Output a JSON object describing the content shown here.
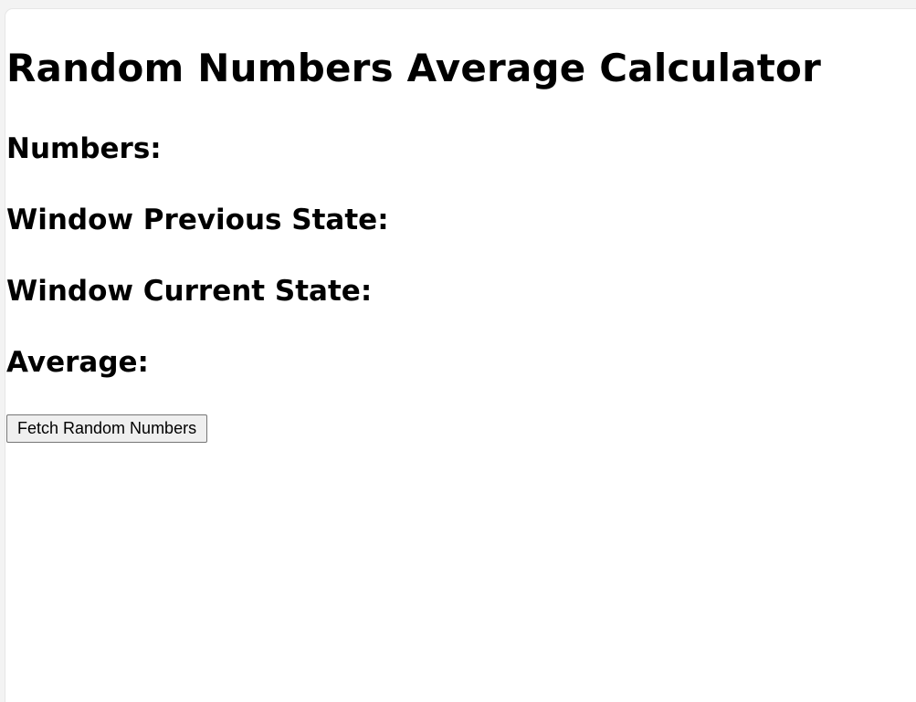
{
  "page": {
    "title": "Random Numbers Average Calculator",
    "labels": {
      "numbers": "Numbers:",
      "window_prev": "Window Previous State:",
      "window_curr": "Window Current State:",
      "average": "Average:"
    },
    "fetch_button_label": "Fetch Random Numbers"
  }
}
